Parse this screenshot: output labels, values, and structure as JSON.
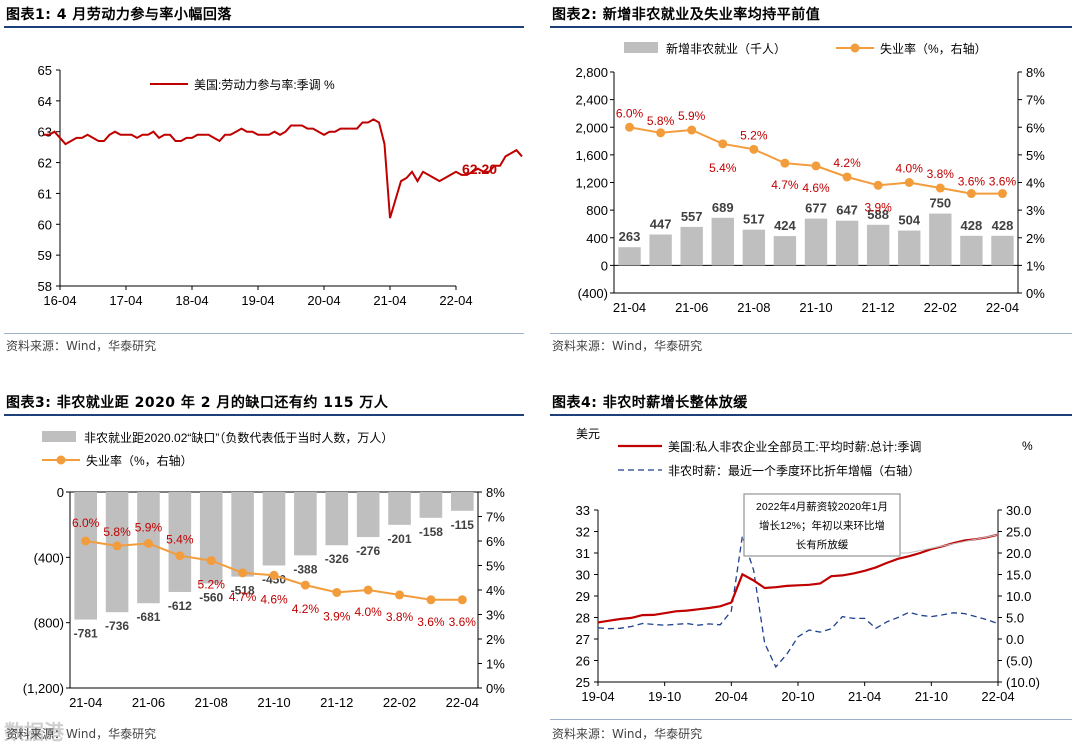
{
  "watermark": "数据港",
  "panel1": {
    "title": "图表1:   4 月劳动力参与率小幅回落",
    "source": "资料来源：Wind，华泰研究",
    "chart_data": {
      "type": "line",
      "title": "4 月劳动力参与率小幅回落",
      "legend": "美国:劳动力参与率:季调 %",
      "end_label": "62.20",
      "color": "#c00000",
      "x_ticks": [
        "16-04",
        "17-04",
        "18-04",
        "19-04",
        "20-04",
        "21-04",
        "22-04"
      ],
      "ylim": [
        58,
        65
      ],
      "y_ticks": [
        58,
        59,
        60,
        61,
        62,
        63,
        64,
        65
      ],
      "start_month": "2016-01",
      "values": [
        62.9,
        62.9,
        63.0,
        62.8,
        62.6,
        62.7,
        62.8,
        62.8,
        62.9,
        62.8,
        62.7,
        62.7,
        62.9,
        63.0,
        62.9,
        62.9,
        62.9,
        62.8,
        62.9,
        62.9,
        63.0,
        62.8,
        62.9,
        62.9,
        62.7,
        62.7,
        62.8,
        62.8,
        62.9,
        62.9,
        62.9,
        62.8,
        62.7,
        62.9,
        62.9,
        63.0,
        63.1,
        63.0,
        63.0,
        62.9,
        62.9,
        62.9,
        63.0,
        62.9,
        63.0,
        63.2,
        63.2,
        63.2,
        63.1,
        63.1,
        63.0,
        62.9,
        63.0,
        63.0,
        63.1,
        63.1,
        63.1,
        63.1,
        63.3,
        63.3,
        63.4,
        63.3,
        62.6,
        60.2,
        60.8,
        61.4,
        61.5,
        61.7,
        61.4,
        61.7,
        61.6,
        61.5,
        61.4,
        61.5,
        61.6,
        61.7,
        61.6,
        61.6,
        61.7,
        61.8,
        61.7,
        61.7,
        61.9,
        61.9,
        62.2,
        62.3,
        62.4,
        62.2
      ]
    }
  },
  "panel2": {
    "title": "图表2:   新增非农就业及失业率均持平前值",
    "source": "资料来源：Wind，华泰研究",
    "chart_data": {
      "type": "bar+line",
      "legend_bar": "新增非农就业（千人）",
      "legend_line": "失业率（%，右轴）",
      "categories": [
        "21-04",
        "21-05",
        "21-06",
        "21-07",
        "21-08",
        "21-09",
        "21-10",
        "21-11",
        "21-12",
        "22-01",
        "22-02",
        "22-03",
        "22-04"
      ],
      "x_ticks": [
        "21-04",
        "21-06",
        "21-08",
        "21-10",
        "21-12",
        "22-02",
        "22-04"
      ],
      "bars": [
        263,
        447,
        557,
        689,
        517,
        424,
        677,
        647,
        588,
        504,
        750,
        428,
        428
      ],
      "bar_labels": [
        "263",
        "447",
        "557",
        "689",
        "517",
        "424",
        "677",
        "647",
        "588",
        "504",
        "750",
        "428",
        "428"
      ],
      "line": [
        6.0,
        5.8,
        5.9,
        5.4,
        5.2,
        4.7,
        4.6,
        4.2,
        3.9,
        4.0,
        3.8,
        3.6,
        3.6
      ],
      "line_labels": [
        "6.0%",
        "5.8%",
        "5.9%",
        "5.4%",
        "5.2%",
        "4.7%",
        "4.6%",
        "4.2%",
        "3.9%",
        "4.0%",
        "3.8%",
        "3.6%",
        "3.6%"
      ],
      "ylim_left": [
        -400,
        2800
      ],
      "y_ticks_left": [
        "(400)",
        "0",
        "400",
        "800",
        "1,200",
        "1,600",
        "2,000",
        "2,400",
        "2,800"
      ],
      "ylim_right": [
        0,
        8
      ],
      "y_ticks_right": [
        "0%",
        "1%",
        "2%",
        "3%",
        "4%",
        "5%",
        "6%",
        "7%",
        "8%"
      ]
    }
  },
  "panel3": {
    "title": "图表3:   非农就业距 2020 年 2 月的缺口还有约 115 万人",
    "source": "资料来源：Wind，华泰研究",
    "chart_data": {
      "type": "bar+line",
      "legend_bar": "非农就业距2020.02“缺口”（负数代表低于当时人数，万人）",
      "legend_line": "失业率（%，右轴）",
      "categories": [
        "21-04",
        "21-05",
        "21-06",
        "21-07",
        "21-08",
        "21-09",
        "21-10",
        "21-11",
        "21-12",
        "22-01",
        "22-02",
        "22-03",
        "22-04"
      ],
      "x_ticks": [
        "21-04",
        "21-06",
        "21-08",
        "21-10",
        "21-12",
        "22-02",
        "22-04"
      ],
      "bars": [
        -781,
        -736,
        -681,
        -612,
        -560,
        -518,
        -450,
        -388,
        -326,
        -276,
        -201,
        -158,
        -115
      ],
      "bar_labels": [
        "-781",
        "-736",
        "-681",
        "-612",
        "-560",
        "-518",
        "-450",
        "-388",
        "-326",
        "-276",
        "-201",
        "-158",
        "-115"
      ],
      "line": [
        6.0,
        5.8,
        5.9,
        5.4,
        5.2,
        4.7,
        4.6,
        4.2,
        3.9,
        4.0,
        3.8,
        3.6,
        3.6
      ],
      "line_labels": [
        "6.0%",
        "5.8%",
        "5.9%",
        "5.4%",
        "5.2%",
        "4.7%",
        "4.6%",
        "4.2%",
        "3.9%",
        "4.0%",
        "3.8%",
        "3.6%",
        "3.6%"
      ],
      "ylim_left": [
        -1200,
        0
      ],
      "y_ticks_left": [
        "(1,200)",
        "(800)",
        "(400)",
        "0"
      ],
      "ylim_right": [
        0,
        8
      ],
      "y_ticks_right": [
        "0%",
        "1%",
        "2%",
        "3%",
        "4%",
        "5%",
        "6%",
        "7%",
        "8%"
      ]
    }
  },
  "panel4": {
    "title": "图表4:   非农时薪增长整体放缓",
    "source": "资料来源：Wind，华泰研究",
    "chart_data": {
      "type": "line",
      "unit_left": "美元",
      "unit_right": "%",
      "legend_a": "美国:私人非农企业全部员工:平均时薪:总计:季调",
      "legend_b": "非农时薪：最近一个季度环比折年增幅（右轴）",
      "annotation": [
        "2022年4月薪资较2020年1月",
        "增长12%；年初以来环比增",
        "长有所放缓"
      ],
      "x_ticks": [
        "19-04",
        "19-10",
        "20-04",
        "20-10",
        "21-04",
        "21-10",
        "22-04"
      ],
      "ylim_left": [
        25,
        33
      ],
      "y_ticks_left": [
        "25",
        "26",
        "27",
        "28",
        "29",
        "30",
        "31",
        "32",
        "33"
      ],
      "ylim_right": [
        -10,
        30
      ],
      "y_ticks_right": [
        "(10.0)",
        "(5.0)",
        "0.0",
        "5.0",
        "10.0",
        "15.0",
        "20.0",
        "25.0",
        "30.0"
      ],
      "start_month": "2019-04",
      "wage": [
        27.77,
        27.85,
        27.93,
        27.98,
        28.11,
        28.12,
        28.2,
        28.29,
        28.32,
        28.38,
        28.44,
        28.52,
        28.7,
        30.01,
        29.72,
        29.37,
        29.41,
        29.47,
        29.5,
        29.52,
        29.58,
        29.92,
        29.96,
        30.05,
        30.17,
        30.33,
        30.54,
        30.73,
        30.85,
        31.0,
        31.18,
        31.31,
        31.46,
        31.58,
        31.64,
        31.73,
        31.85
      ],
      "wage_growth": [
        2.6,
        2.4,
        2.5,
        2.9,
        3.6,
        3.4,
        3.2,
        3.4,
        3.6,
        3.2,
        3.5,
        3.3,
        6.5,
        24.0,
        16.0,
        -1.0,
        -6.5,
        -3.5,
        0.5,
        2.1,
        1.6,
        2.4,
        5.2,
        4.8,
        4.8,
        2.5,
        4.0,
        5.0,
        6.2,
        5.5,
        5.2,
        5.6,
        6.1,
        5.9,
        5.2,
        4.5,
        3.6
      ]
    }
  }
}
